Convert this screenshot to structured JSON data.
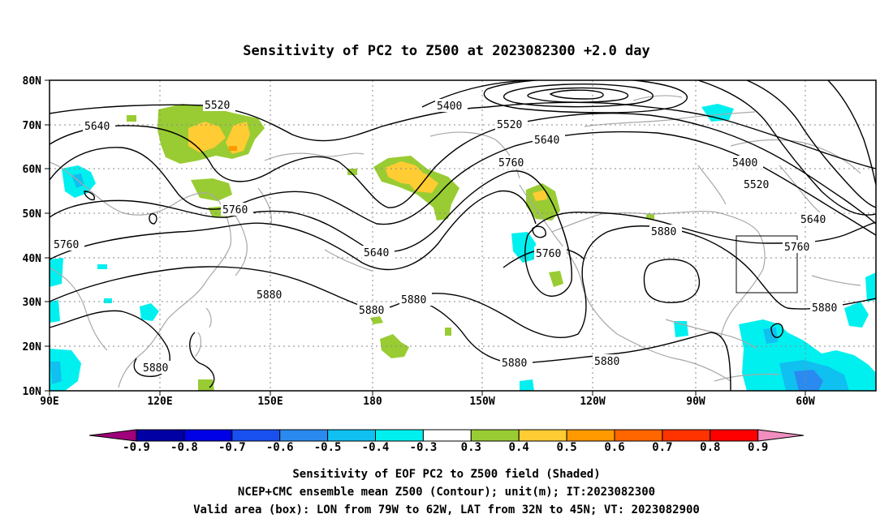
{
  "title": "Sensitivity of PC2 to Z500 at 2023082300 +2.0 day",
  "map": {
    "lat_labels": [
      "80N",
      "70N",
      "60N",
      "50N",
      "40N",
      "30N",
      "20N",
      "10N"
    ],
    "lon_labels": [
      "90E",
      "120E",
      "150E",
      "180",
      "150W",
      "120W",
      "90W",
      "60W"
    ],
    "valid_box": {
      "lon": [
        -79,
        -62
      ],
      "lat": [
        32,
        45
      ]
    }
  },
  "contours": {
    "unit": "m",
    "labels": [
      {
        "text": "5520"
      },
      {
        "text": "5640"
      },
      {
        "text": "5400"
      },
      {
        "text": "5520"
      },
      {
        "text": "5640"
      },
      {
        "text": "5760"
      },
      {
        "text": "5400"
      },
      {
        "text": "5520"
      },
      {
        "text": "5640"
      },
      {
        "text": "5760"
      },
      {
        "text": "5880"
      },
      {
        "text": "5760"
      },
      {
        "text": "5760"
      },
      {
        "text": "5640"
      },
      {
        "text": "5760"
      },
      {
        "text": "5880"
      },
      {
        "text": "5880"
      },
      {
        "text": "5880"
      },
      {
        "text": "5880"
      },
      {
        "text": "5880"
      },
      {
        "text": "5880"
      },
      {
        "text": "5880"
      }
    ]
  },
  "colorbar": {
    "labels": [
      "-0.9",
      "-0.8",
      "-0.7",
      "-0.6",
      "-0.5",
      "-0.4",
      "-0.3",
      "0.3",
      "0.4",
      "0.5",
      "0.6",
      "0.7",
      "0.8",
      "0.9"
    ],
    "colors": [
      "#a0007a",
      "#0000a5",
      "#0000e6",
      "#1850f0",
      "#2a8af0",
      "#10c0f0",
      "#00f0f0",
      "#ffffff",
      "#99cc33",
      "#ffcc33",
      "#ff9900",
      "#ff6600",
      "#ff3300",
      "#ff0000",
      "#f08ec0"
    ]
  },
  "footer": [
    "Sensitivity of EOF PC2 to Z500 field (Shaded)",
    "NCEP+CMC ensemble mean Z500 (Contour); unit(m); IT:2023082300",
    "Valid area (box): LON from 79W to 62W, LAT from 32N to 45N; VT: 2023082900"
  ]
}
